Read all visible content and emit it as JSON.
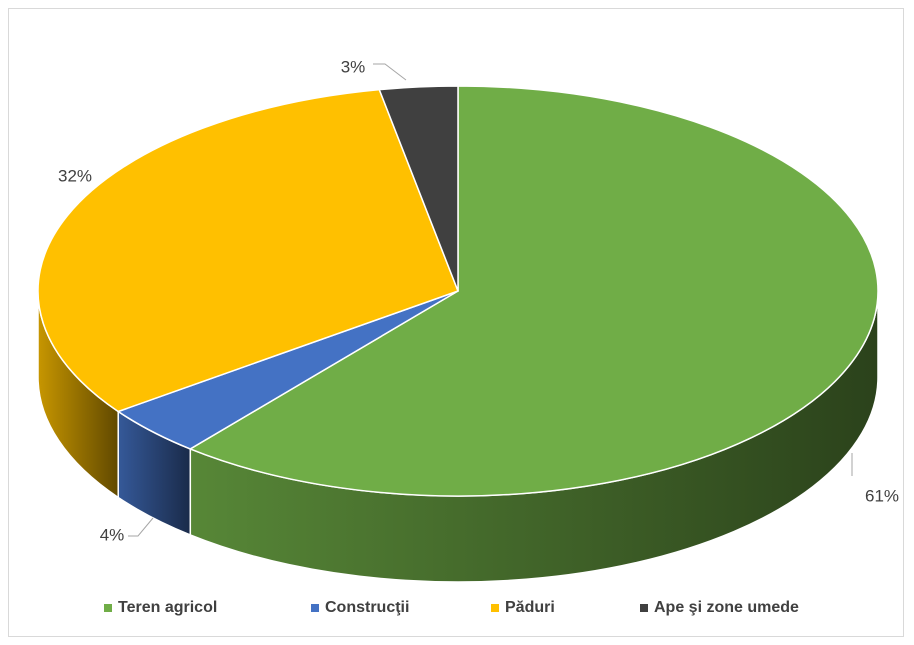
{
  "chart_data": {
    "type": "pie",
    "style": "3d",
    "title": "",
    "labels": [
      "Teren agricol",
      "Construcţii",
      "Păduri",
      "Ape şi zone umede"
    ],
    "values": [
      61,
      4,
      32,
      3
    ],
    "data_labels": [
      "61%",
      "4%",
      "32%",
      "3%"
    ],
    "colors": [
      "#70ad47",
      "#4472c4",
      "#ffc000",
      "#404040"
    ],
    "legend_position": "bottom"
  }
}
